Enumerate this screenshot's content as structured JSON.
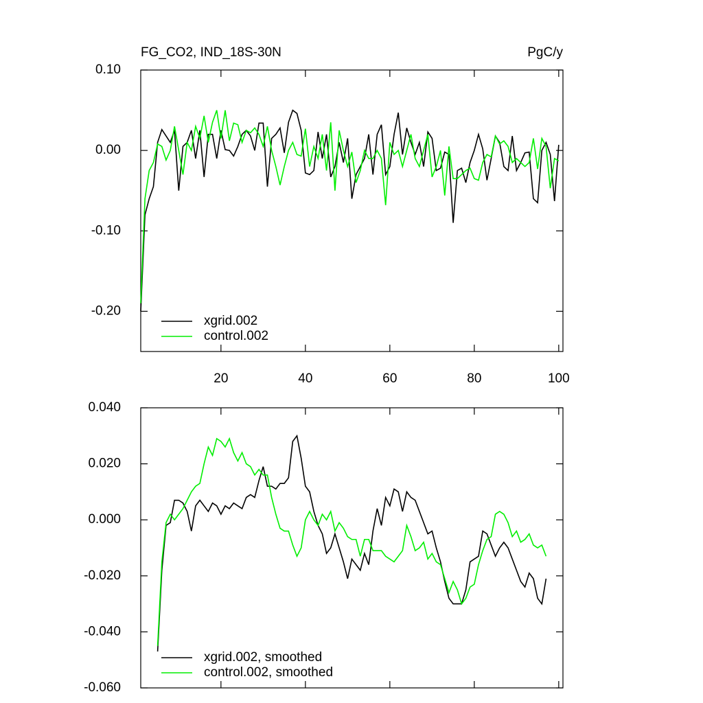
{
  "chart_data": [
    {
      "type": "line",
      "title": "FG_CO2, IND_18S-30N",
      "units": "PgC/y",
      "x": [
        1,
        2,
        3,
        4,
        5,
        6,
        7,
        8,
        9,
        10,
        11,
        12,
        13,
        14,
        15,
        16,
        17,
        18,
        19,
        20,
        21,
        22,
        23,
        24,
        25,
        26,
        27,
        28,
        29,
        30,
        31,
        32,
        33,
        34,
        35,
        36,
        37,
        38,
        39,
        40,
        41,
        42,
        43,
        44,
        45,
        46,
        47,
        48,
        49,
        50,
        51,
        52,
        53,
        54,
        55,
        56,
        57,
        58,
        59,
        60,
        61,
        62,
        63,
        64,
        65,
        66,
        67,
        68,
        69,
        70,
        71,
        72,
        73,
        74,
        75,
        76,
        77,
        78,
        79,
        80,
        81,
        82,
        83,
        84,
        85,
        86,
        87,
        88,
        89,
        90,
        91,
        92,
        93,
        94,
        95,
        96,
        97,
        98,
        99,
        100
      ],
      "series": [
        {
          "name": "xgrid.002",
          "color": "#000000",
          "values": [
            -0.2,
            -0.08,
            -0.06,
            -0.045,
            0.01,
            0.026,
            0.018,
            0.01,
            0.025,
            -0.05,
            0.005,
            0.01,
            0.025,
            -0.01,
            0.025,
            -0.033,
            0.02,
            0.02,
            -0.01,
            0.025,
            0.001,
            0.0,
            -0.007,
            0.005,
            0.02,
            0.025,
            0.018,
            0.0,
            0.034,
            0.034,
            -0.045,
            0.015,
            0.02,
            0.028,
            -0.003,
            0.035,
            0.05,
            0.046,
            0.025,
            -0.028,
            -0.03,
            -0.025,
            0.023,
            -0.01,
            0.02,
            -0.033,
            -0.02,
            0.01,
            -0.015,
            0.015,
            -0.06,
            -0.03,
            -0.02,
            -0.01,
            0.02,
            -0.03,
            0.02,
            0.032,
            -0.03,
            -0.02,
            0.02,
            0.047,
            -0.005,
            0.028,
            0.01,
            -0.005,
            0.01,
            -0.02,
            0.023,
            0.015,
            -0.025,
            -0.022,
            -0.002,
            -0.005,
            -0.09,
            -0.025,
            -0.022,
            -0.04,
            -0.015,
            0.0,
            0.02,
            0.002,
            -0.037,
            -0.01,
            0.018,
            0.01,
            -0.02,
            -0.025,
            0.018,
            -0.025,
            -0.015,
            -0.003,
            -0.002,
            -0.06,
            -0.065,
            0.0,
            0.01,
            -0.005,
            -0.063,
            0.007
          ]
        },
        {
          "name": "control.002",
          "color": "#00ee00",
          "values": [
            -0.19,
            -0.06,
            -0.025,
            -0.015,
            0.008,
            0.005,
            -0.012,
            0.0,
            0.03,
            0.0,
            -0.03,
            0.01,
            0.0,
            0.03,
            0.015,
            0.043,
            0.01,
            0.035,
            0.05,
            0.015,
            0.05,
            0.012,
            0.034,
            0.032,
            0.01,
            0.025,
            0.022,
            0.028,
            0.02,
            0.005,
            0.03,
            0.0,
            -0.02,
            -0.043,
            -0.02,
            0.0,
            0.01,
            -0.005,
            -0.007,
            0.027,
            -0.02,
            0.005,
            -0.01,
            0.02,
            -0.025,
            0.035,
            -0.05,
            0.025,
            0.0,
            -0.02,
            -0.002,
            -0.04,
            -0.025,
            0.0,
            -0.01,
            -0.01,
            0.0,
            -0.01,
            -0.068,
            0.01,
            -0.005,
            0.0,
            -0.02,
            0.0,
            0.02,
            -0.01,
            -0.02,
            0.0,
            0.02,
            -0.033,
            -0.02,
            0.0,
            -0.056,
            0.005,
            -0.035,
            -0.035,
            -0.03,
            -0.025,
            -0.022,
            -0.035,
            -0.037,
            -0.015,
            -0.005,
            -0.008,
            0.018,
            0.008,
            0.012,
            0.005,
            -0.015,
            -0.01,
            -0.015,
            -0.02,
            -0.015,
            0.015,
            -0.023,
            0.015,
            0.005,
            -0.047,
            -0.01,
            -0.013
          ]
        }
      ],
      "xlim": [
        1,
        101
      ],
      "xticks": [
        20,
        40,
        60,
        80,
        100
      ],
      "xtick_labels": true,
      "ylim": [
        -0.25,
        0.1
      ],
      "yticks": [
        {
          "value": -0.2,
          "label": "-0.20"
        },
        {
          "value": -0.1,
          "label": "-0.10"
        },
        {
          "value": 0,
          "label": "0.00"
        },
        {
          "value": 0.1,
          "label": "0.10"
        }
      ],
      "legend": "lower left"
    },
    {
      "type": "line",
      "x": [
        5,
        6,
        7,
        8,
        9,
        10,
        11,
        12,
        13,
        14,
        15,
        16,
        17,
        18,
        19,
        20,
        21,
        22,
        23,
        24,
        25,
        26,
        27,
        28,
        29,
        30,
        31,
        32,
        33,
        34,
        35,
        36,
        37,
        38,
        39,
        40,
        41,
        42,
        43,
        44,
        45,
        46,
        47,
        48,
        49,
        50,
        51,
        52,
        53,
        54,
        55,
        56,
        57,
        58,
        59,
        60,
        61,
        62,
        63,
        64,
        65,
        66,
        67,
        68,
        69,
        70,
        71,
        72,
        73,
        74,
        75,
        76,
        77,
        78,
        79,
        80,
        81,
        82,
        83,
        84,
        85,
        86,
        87,
        88,
        89,
        90,
        91,
        92,
        93,
        94,
        95,
        96,
        97
      ],
      "series": [
        {
          "name": "xgrid.002, smoothed",
          "color": "#000000",
          "values": [
            -0.047,
            -0.018,
            -0.002,
            -0.001,
            0.007,
            0.007,
            0.006,
            0.003,
            -0.004,
            0.005,
            0.007,
            0.005,
            0.003,
            0.006,
            0.005,
            0.002,
            0.005,
            0.004,
            0.006,
            0.005,
            0.004,
            0.008,
            0.009,
            0.008,
            0.014,
            0.019,
            0.012,
            0.012,
            0.011,
            0.013,
            0.013,
            0.015,
            0.028,
            0.03,
            0.022,
            0.012,
            0.01,
            0.003,
            -0.002,
            -0.005,
            -0.012,
            -0.01,
            -0.005,
            -0.01,
            -0.015,
            -0.021,
            -0.014,
            -0.016,
            -0.018,
            -0.012,
            -0.016,
            -0.004,
            0.004,
            -0.002,
            0.008,
            0.005,
            0.011,
            0.01,
            0.003,
            0.01,
            0.008,
            0.007,
            0.003,
            -0.001,
            -0.005,
            -0.004,
            -0.01,
            -0.015,
            -0.022,
            -0.028,
            -0.03,
            -0.03,
            -0.03,
            -0.025,
            -0.015,
            -0.014,
            -0.013,
            -0.004,
            -0.005,
            -0.009,
            -0.013,
            -0.01,
            -0.008,
            -0.01,
            -0.014,
            -0.018,
            -0.022,
            -0.024,
            -0.019,
            -0.021,
            -0.028,
            -0.03,
            -0.021
          ]
        },
        {
          "name": "control.002, smoothed",
          "color": "#00ee00",
          "values": [
            -0.045,
            -0.015,
            -0.001,
            0.002,
            0.0,
            0.002,
            0.004,
            0.007,
            0.01,
            0.012,
            0.013,
            0.02,
            0.026,
            0.023,
            0.029,
            0.028,
            0.026,
            0.029,
            0.024,
            0.021,
            0.024,
            0.02,
            0.019,
            0.016,
            0.018,
            0.016,
            0.016,
            0.008,
            0.002,
            -0.003,
            -0.004,
            -0.004,
            -0.009,
            -0.013,
            -0.01,
            0.0,
            0.003,
            0.0,
            -0.002,
            0.002,
            0.0,
            0.003,
            -0.004,
            -0.001,
            -0.003,
            -0.006,
            -0.007,
            -0.007,
            -0.013,
            -0.007,
            -0.007,
            -0.011,
            -0.011,
            -0.011,
            -0.013,
            -0.014,
            -0.015,
            -0.013,
            -0.011,
            -0.002,
            -0.006,
            -0.011,
            -0.01,
            -0.008,
            -0.014,
            -0.012,
            -0.015,
            -0.016,
            -0.021,
            -0.026,
            -0.022,
            -0.025,
            -0.03,
            -0.028,
            -0.024,
            -0.023,
            -0.016,
            -0.011,
            -0.007,
            -0.006,
            0.002,
            0.003,
            0.002,
            -0.001,
            -0.006,
            -0.004,
            -0.008,
            -0.007,
            -0.005,
            -0.009,
            -0.01,
            -0.009,
            -0.013
          ]
        }
      ],
      "xlim": [
        1,
        101
      ],
      "xticks": [
        20,
        40,
        60,
        80,
        100
      ],
      "xtick_labels": false,
      "ylim": [
        -0.06,
        0.04
      ],
      "yticks": [
        {
          "value": -0.06,
          "label": "-0.060"
        },
        {
          "value": -0.04,
          "label": "-0.040"
        },
        {
          "value": -0.02,
          "label": "-0.020"
        },
        {
          "value": 0,
          "label": "0.000"
        },
        {
          "value": 0.02,
          "label": "0.020"
        },
        {
          "value": 0.04,
          "label": "0.040"
        }
      ],
      "legend": "lower left"
    }
  ]
}
